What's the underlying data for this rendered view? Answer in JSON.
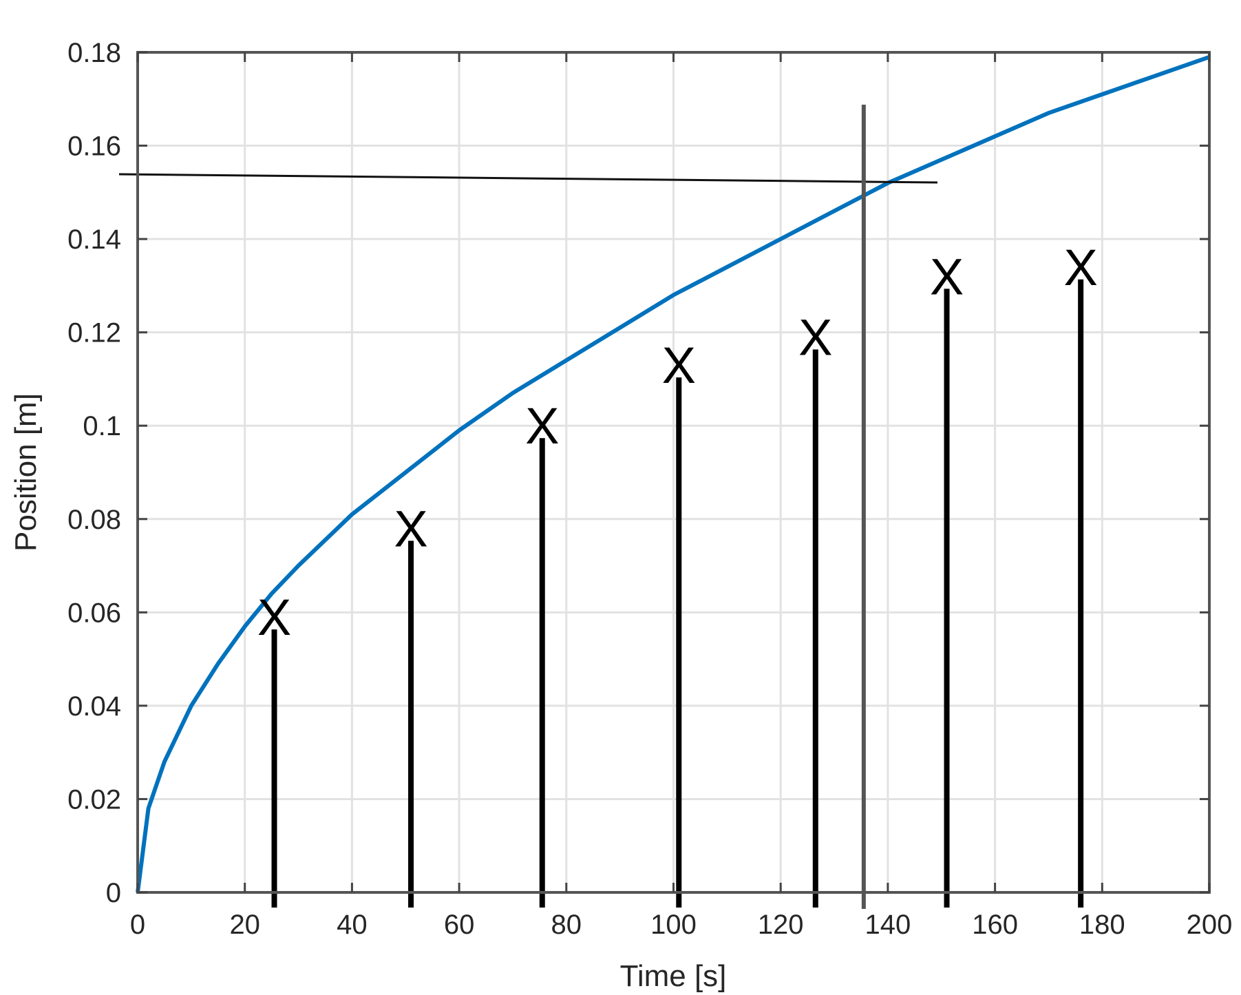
{
  "chart_data": {
    "type": "line",
    "title": "",
    "xlabel": "Time [s]",
    "ylabel": "Position [m]",
    "xlim": [
      0,
      200
    ],
    "ylim": [
      0,
      0.18
    ],
    "grid": true,
    "x_ticks": [
      0,
      20,
      40,
      60,
      80,
      100,
      120,
      140,
      160,
      180,
      200
    ],
    "x_tick_labels": [
      "0",
      "20",
      "40",
      "60",
      "80",
      "100",
      "120",
      "140",
      "160",
      "180",
      "200"
    ],
    "y_ticks": [
      0,
      0.02,
      0.04,
      0.06,
      0.08,
      0.1,
      0.12,
      0.14,
      0.16,
      0.18
    ],
    "y_tick_labels": [
      "0",
      "0.02",
      "0.04",
      "0.06",
      "0.08",
      "0.1",
      "0.12",
      "0.14",
      "0.16",
      "0.18"
    ],
    "series": [
      {
        "color": "#0072bd",
        "x": [
          0,
          2,
          5,
          10,
          15,
          20,
          25,
          30,
          40,
          50,
          60,
          70,
          80,
          90,
          100,
          110,
          120,
          130,
          135,
          140,
          150,
          160,
          170,
          180,
          190,
          200
        ],
        "y": [
          0,
          0.018,
          0.028,
          0.04,
          0.049,
          0.057,
          0.064,
          0.07,
          0.081,
          0.09,
          0.099,
          0.107,
          0.114,
          0.121,
          0.128,
          0.134,
          0.14,
          0.146,
          0.149,
          0.152,
          0.157,
          0.162,
          0.167,
          0.171,
          0.175,
          0.179
        ]
      }
    ],
    "crosshair": {
      "x": 135.5,
      "y": 0.153,
      "color": "#555555"
    },
    "markers": {
      "label": "X",
      "arrow_color": "#000000",
      "points": [
        {
          "x": 25.5,
          "y": 0.059
        },
        {
          "x": 51,
          "y": 0.078
        },
        {
          "x": 75.5,
          "y": 0.1
        },
        {
          "x": 101,
          "y": 0.113
        },
        {
          "x": 126.5,
          "y": 0.119
        },
        {
          "x": 151,
          "y": 0.132
        },
        {
          "x": 176,
          "y": 0.134
        }
      ]
    }
  }
}
